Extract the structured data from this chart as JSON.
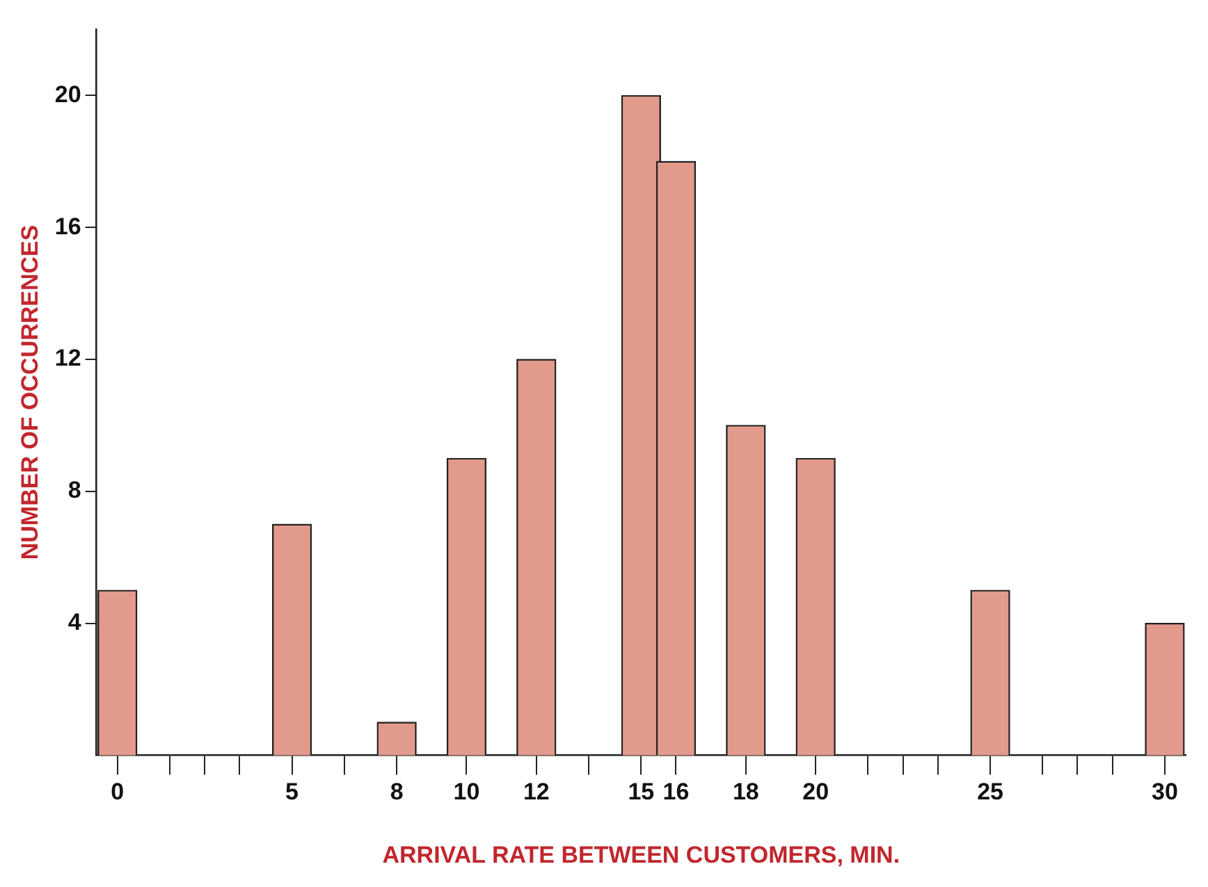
{
  "chart_data": {
    "type": "bar",
    "xlabel": "ARRIVAL RATE BETWEEN CUSTOMERS, MIN.",
    "ylabel": "NUMBER OF OCCURRENCES",
    "x": [
      0,
      5,
      8,
      10,
      12,
      15,
      16,
      18,
      20,
      25,
      30
    ],
    "values": [
      5,
      7,
      1,
      9,
      12,
      20,
      18,
      10,
      9,
      5,
      4
    ],
    "color": "#e29a8c",
    "xlim": [
      -0.6,
      30.6
    ],
    "xticks": [
      0,
      {
        "value": 1.5,
        "label": null
      },
      {
        "value": 2.5,
        "label": null
      },
      {
        "value": 3.5,
        "label": null
      },
      5,
      {
        "value": 6.5,
        "label": null
      },
      8,
      10,
      12,
      {
        "value": 13.5,
        "label": null
      },
      15,
      16,
      18,
      20,
      {
        "value": 21.5,
        "label": null
      },
      {
        "value": 22.5,
        "label": null
      },
      {
        "value": 23.5,
        "label": null
      },
      25,
      {
        "value": 26.5,
        "label": null
      },
      {
        "value": 27.5,
        "label": null
      },
      {
        "value": 28.5,
        "label": null
      },
      30
    ],
    "ylim": [
      0,
      22
    ],
    "yticks": [
      4,
      8,
      12,
      16,
      20
    ],
    "grid": false,
    "legend": false
  }
}
